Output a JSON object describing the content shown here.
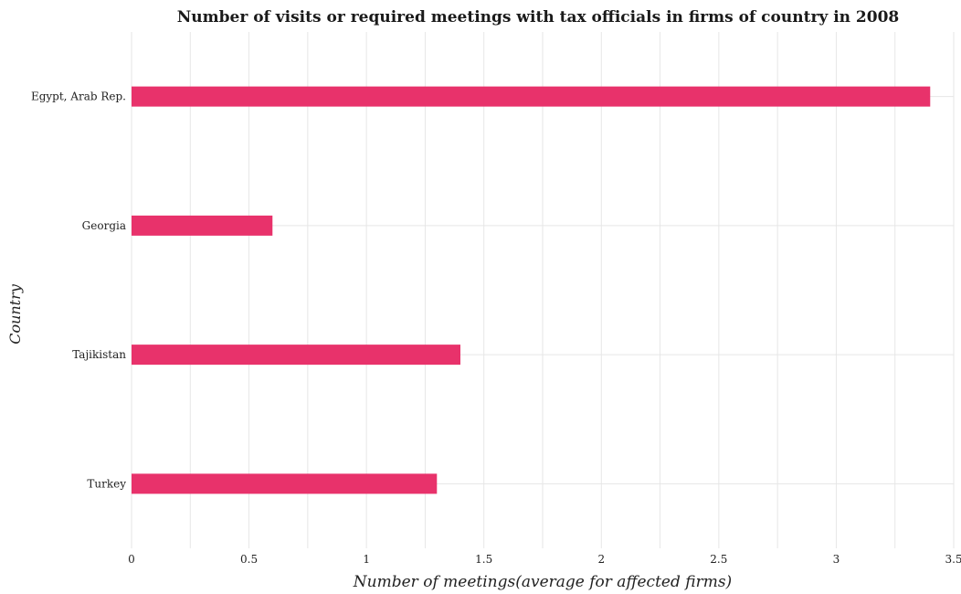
{
  "chart_data": {
    "type": "bar",
    "orientation": "horizontal",
    "title": "Number of visits or required meetings with tax officials in firms of country in 2008",
    "xlabel": "Number of meetings(average for affected firms)",
    "ylabel": "Country",
    "categories": [
      "Egypt, Arab Rep.",
      "Georgia",
      "Tajikistan",
      "Turkey"
    ],
    "values": [
      3.4,
      0.6,
      1.4,
      1.3
    ],
    "xlim": [
      0,
      3.5
    ],
    "xticks": [
      "0",
      "0.5",
      "1",
      "1.5",
      "2",
      "2.5",
      "3",
      "3.5"
    ],
    "grid": true,
    "bar_color": "#e8326b"
  }
}
